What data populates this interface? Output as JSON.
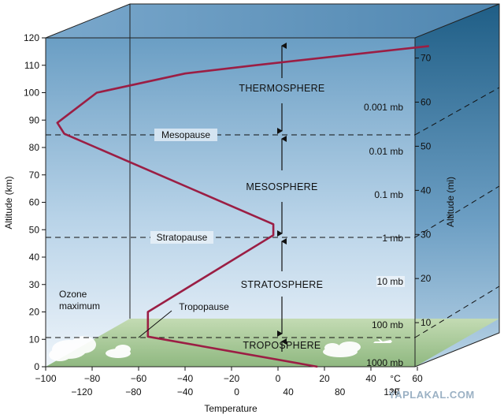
{
  "axes": {
    "altitude_km_title": "Altitude (km)",
    "altitude_km_ticks": [
      "0",
      "10",
      "20",
      "30",
      "40",
      "50",
      "60",
      "70",
      "80",
      "90",
      "100",
      "110",
      "120"
    ],
    "altitude_mi_title": "Altitude (mi)",
    "altitude_mi_ticks": [
      "10",
      "20",
      "30",
      "40",
      "50",
      "60",
      "70"
    ],
    "temp_c_ticks": [
      "−100",
      "−80",
      "−60",
      "−40",
      "−20",
      "0",
      "20",
      "40",
      "60"
    ],
    "temp_c_unit": "°C",
    "temp_f_ticks": [
      "−120",
      "−80",
      "−40",
      "0",
      "40",
      "80",
      "120"
    ],
    "temp_f_unit": "°F",
    "temperature_title": "Temperature"
  },
  "layers": {
    "thermosphere": "THERMOSPHERE",
    "mesosphere": "MESOSPHERE",
    "stratosphere": "STRATOSPHERE",
    "troposphere": "TROPOSPHERE"
  },
  "boundaries": {
    "mesopause": "Mesopause",
    "stratopause": "Stratopause",
    "tropopause": "Tropopause"
  },
  "ozone": {
    "line1": "Ozone",
    "line2": "maximum"
  },
  "pressure_labels": [
    "0.001 mb",
    "0.01 mb",
    "0.1 mb",
    "1 mb",
    "10 mb",
    "100 mb",
    "1000 mb"
  ],
  "watermark": "YAPLAKAL.COM",
  "colors": {
    "sky_top": "#6a9ec4",
    "sky_bottom": "#e6f0f8",
    "ground": "#a9c99a",
    "profile_line": "#9b1e44",
    "cube_top": "#5b8fb9",
    "cube_side": "#2f6e95"
  },
  "temperature_profile_c": [
    [
      17,
      0
    ],
    [
      -56,
      11
    ],
    [
      -56,
      20
    ],
    [
      -2,
      48
    ],
    [
      -2,
      52
    ],
    [
      -92,
      85
    ],
    [
      -95,
      89
    ],
    [
      -78,
      100
    ],
    [
      -40,
      107
    ],
    [
      -10,
      110
    ],
    [
      65,
      117
    ]
  ]
}
